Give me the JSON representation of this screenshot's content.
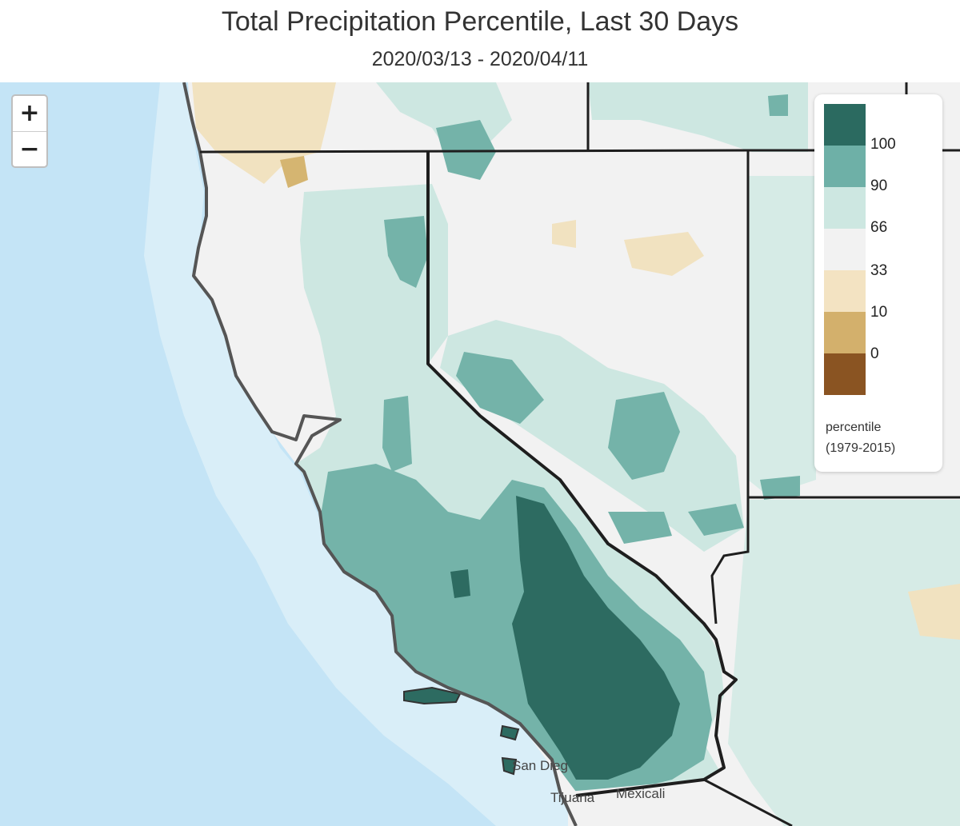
{
  "header": {
    "title": "Total Precipitation Percentile, Last 30 Days",
    "subtitle": "2020/03/13 - 2020/04/11"
  },
  "zoom": {
    "in_label": "+",
    "out_label": "−"
  },
  "legend": {
    "items": [
      {
        "color": "#2b6a60",
        "label": "100"
      },
      {
        "color": "#6eb0a7",
        "label": "90"
      },
      {
        "color": "#cde7e1",
        "label": "66"
      },
      {
        "color": "#f2f2f2",
        "label": "33"
      },
      {
        "color": "#f3e3c2",
        "label": "10"
      },
      {
        "color": "#d3b06c",
        "label": "0"
      },
      {
        "color": "#8a5422",
        "label": ""
      }
    ],
    "caption_line1": "percentile",
    "caption_line2": "(1979-2015)"
  },
  "places": {
    "san_diego": "San Dieg",
    "tijuana": "Tijuana",
    "mexicali": "Mexicali"
  },
  "colors": {
    "ocean": "#c6e5f5",
    "coast_water": "#dff0f8",
    "land_outside": "#f2f2f2",
    "border": "#1e1e1e",
    "coast_line": "#5a5a5a"
  }
}
